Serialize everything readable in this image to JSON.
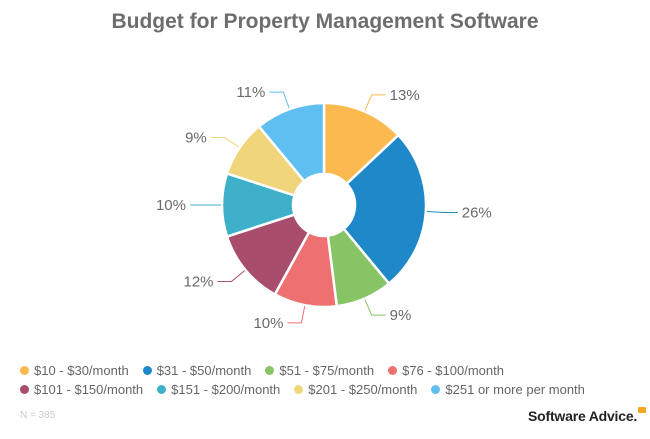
{
  "chart_data": {
    "type": "pie",
    "donut": true,
    "title": "Budget for Property Management Software",
    "unit": "%",
    "legend_placement": "bottom",
    "slices": [
      {
        "name": "$10 - $30/month",
        "value": 13,
        "label": "13%",
        "color": "#fbb94f"
      },
      {
        "name": "$31 - $50/month",
        "value": 26,
        "label": "26%",
        "color": "#1e88c8"
      },
      {
        "name": "$51 - $75/month",
        "value": 9,
        "label": "9%",
        "color": "#86c466"
      },
      {
        "name": "$76 - $100/month",
        "value": 10,
        "label": "10%",
        "color": "#ef7070"
      },
      {
        "name": "$101 - $150/month",
        "value": 12,
        "label": "12%",
        "color": "#a84e6c"
      },
      {
        "name": "$151 - $200/month",
        "value": 10,
        "label": "10%",
        "color": "#3fb0c9"
      },
      {
        "name": "$201 - $250/month",
        "value": 9,
        "label": "9%",
        "color": "#f0d57a"
      },
      {
        "name": "$251 or more per month",
        "value": 11,
        "label": "11%",
        "color": "#5fbff0"
      }
    ]
  },
  "footnote": "N = 385",
  "brand": "Software Advice."
}
